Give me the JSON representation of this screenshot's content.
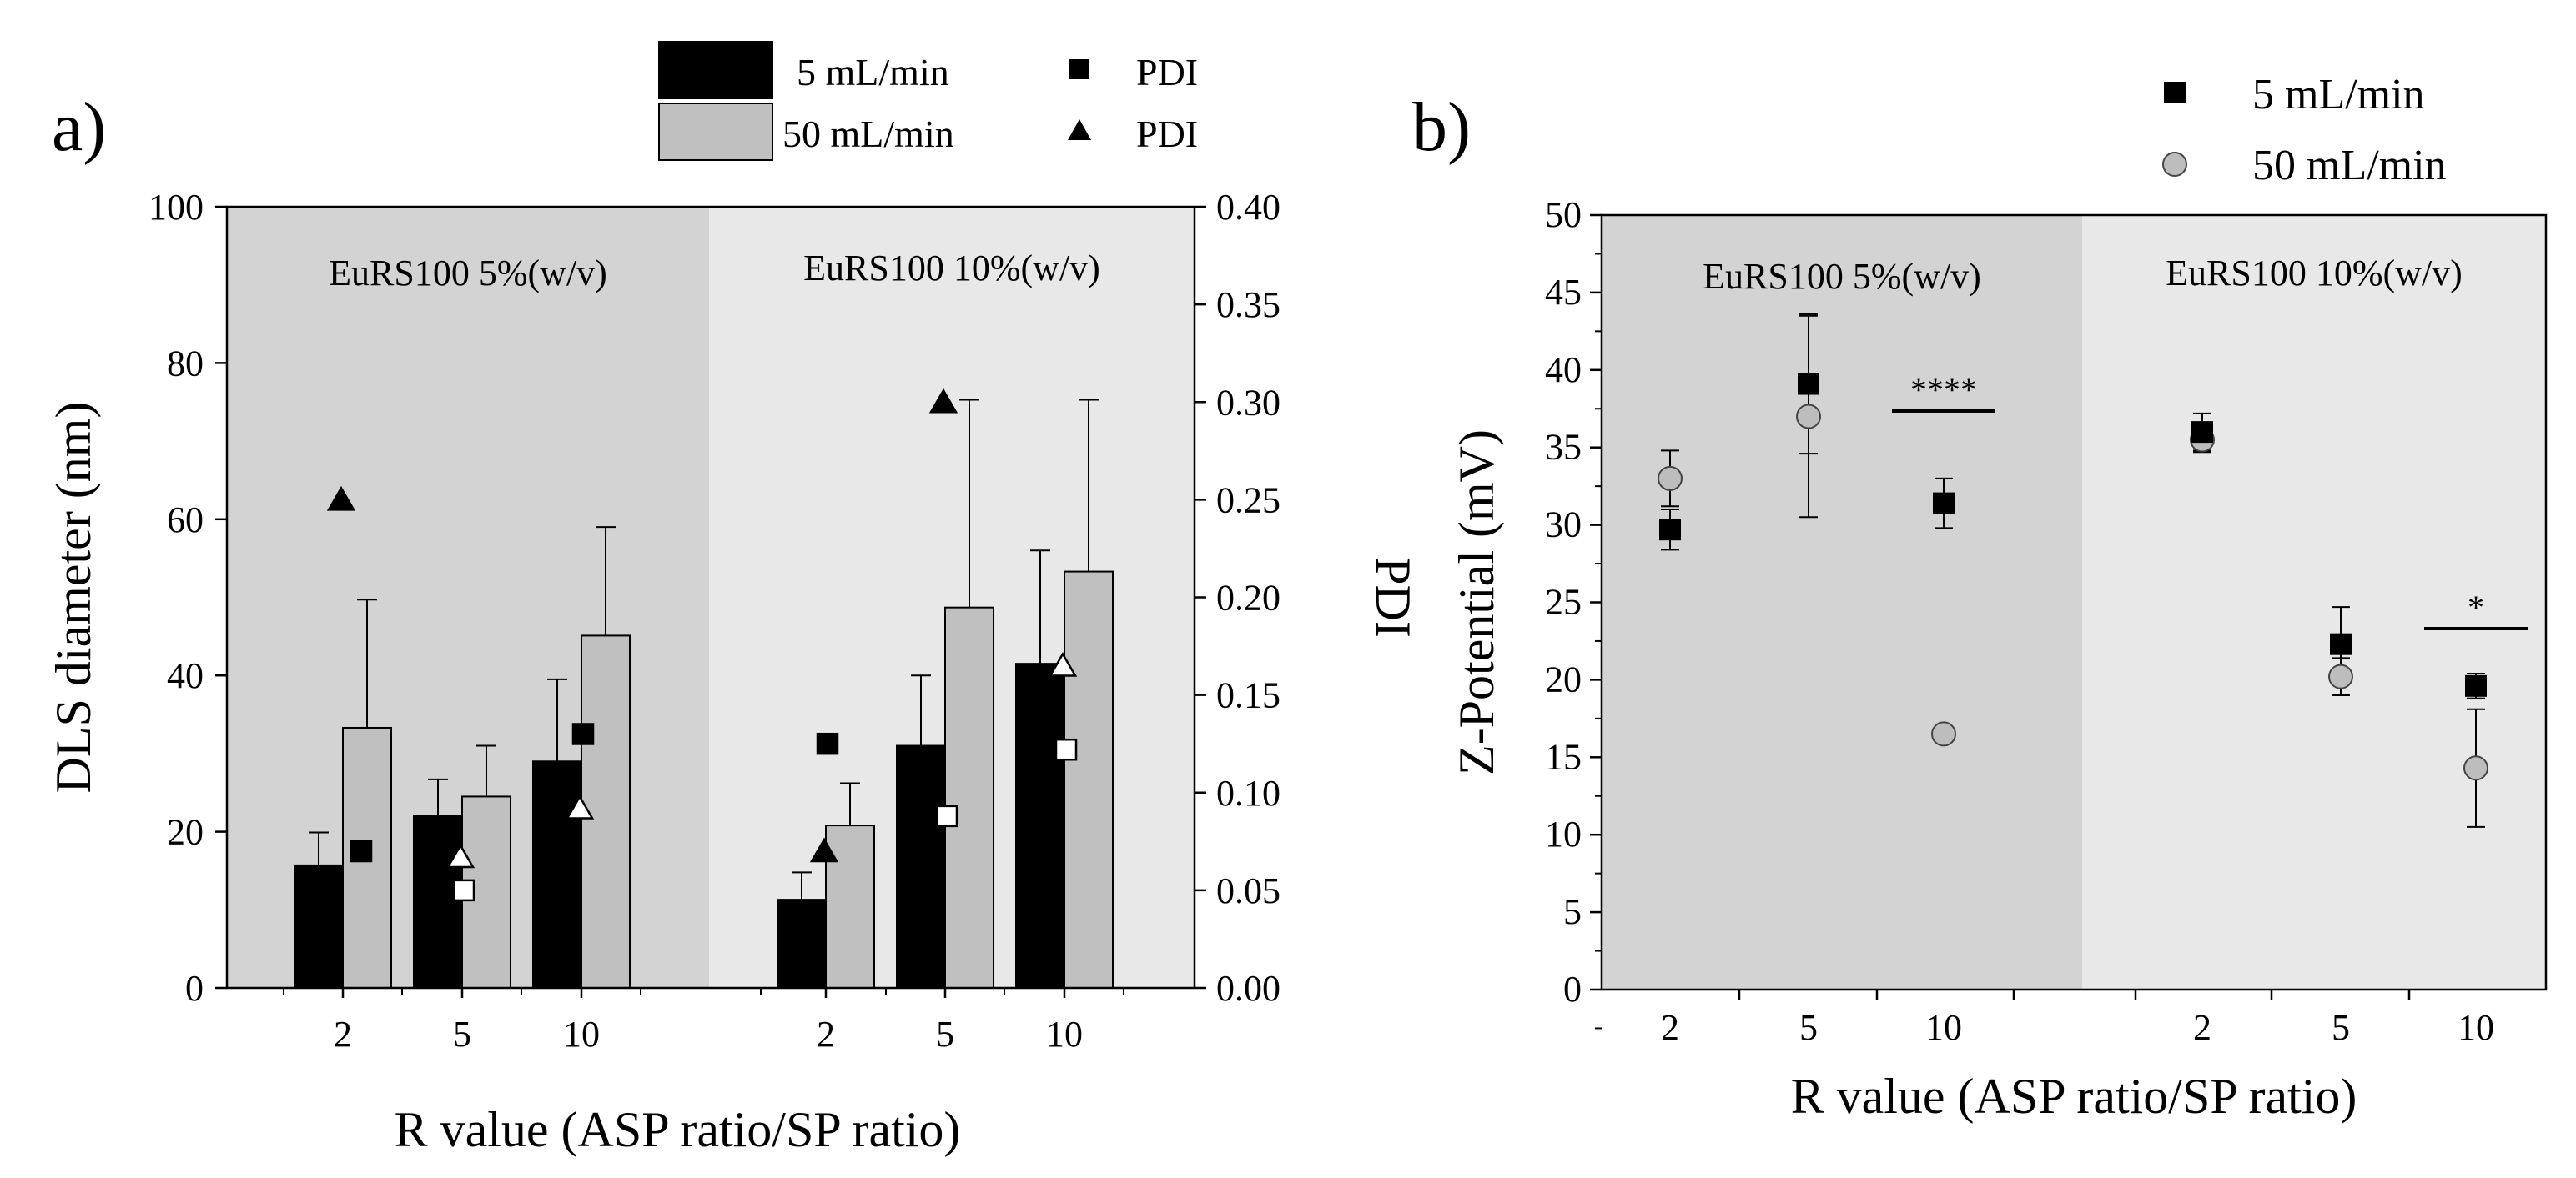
{
  "figure": {
    "panels": [
      {
        "id": "a",
        "letter": "a)",
        "xlabel": "R value (ASP ratio/SP ratio)",
        "ylabel_left": "DLS diameter (nm)",
        "ylabel_right": "PDI",
        "legend": {
          "bar_5": "5 mL/min",
          "bar_50": "50 mL/min",
          "pdi_5": "PDI",
          "pdi_50": "PDI"
        }
      },
      {
        "id": "b",
        "letter": "b)",
        "xlabel": "R value (ASP ratio/SP ratio)",
        "ylabel": "Z-Potential (mV)",
        "legend": {
          "s5": "5 mL/min",
          "s50": "50 mL/min"
        }
      }
    ]
  },
  "colors": {
    "bar_5": "#000000",
    "bar_50": "#c0c0c0",
    "region_dark": "#d3d3d3",
    "region_light": "#e8e8e8",
    "marker_50_b": "#bdbdbd"
  },
  "chart_data": [
    {
      "type": "bar",
      "panel": "a",
      "groups": [
        {
          "label": "EuRS100 5%(w/v)",
          "categories": [
            "2",
            "5",
            "10"
          ]
        },
        {
          "label": "EuRS100 10%(w/v)",
          "categories": [
            "2",
            "5",
            "10"
          ]
        }
      ],
      "ylim": [
        0,
        100
      ],
      "yticks": [
        "0",
        "20",
        "40",
        "60",
        "80",
        "100"
      ],
      "y2lim": [
        0,
        0.4
      ],
      "y2ticks": [
        "0.00",
        "0.05",
        "0.10",
        "0.15",
        "0.20",
        "0.25",
        "0.30",
        "0.35",
        "0.40"
      ],
      "series": [
        {
          "name": "5 mL/min",
          "kind": "bar",
          "values": [
            15.7,
            22.0,
            29.0,
            11.3,
            31.0,
            41.5
          ],
          "errors": [
            4.2,
            4.7,
            10.5,
            3.5,
            9.0,
            14.5
          ]
        },
        {
          "name": "50 mL/min",
          "kind": "bar",
          "values": [
            33.3,
            24.5,
            45.1,
            20.8,
            48.7,
            53.3
          ],
          "errors": [
            16.4,
            6.5,
            13.9,
            5.4,
            26.6,
            22.0
          ]
        },
        {
          "name": "PDI",
          "kind": "square",
          "axis": "right",
          "values": [
            0.07,
            0.05,
            0.13,
            0.125,
            0.088,
            0.122
          ]
        },
        {
          "name": "PDI",
          "kind": "triangle",
          "axis": "right",
          "values": [
            0.25,
            0.067,
            0.092,
            0.07,
            0.3,
            0.165
          ]
        }
      ],
      "grid": false,
      "legend_position": "top"
    },
    {
      "type": "scatter",
      "panel": "b",
      "groups": [
        {
          "label": "EuRS100 5%(w/v)",
          "categories": [
            "2",
            "5",
            "10"
          ]
        },
        {
          "label": "EuRS100 10%(w/v)",
          "categories": [
            "2",
            "5",
            "10"
          ]
        }
      ],
      "ylim": [
        0,
        50
      ],
      "yticks": [
        "0",
        "5",
        "10",
        "15",
        "20",
        "25",
        "30",
        "35",
        "40",
        "45",
        "50"
      ],
      "series": [
        {
          "name": "5 mL/min",
          "marker": "square",
          "values": [
            29.7,
            39.1,
            31.4,
            36.0,
            22.3,
            19.6
          ],
          "errors": [
            1.3,
            4.5,
            1.6,
            1.2,
            2.4,
            0.8
          ]
        },
        {
          "name": "50 mL/min",
          "marker": "circle",
          "values": [
            33.0,
            37.0,
            16.5,
            35.5,
            20.2,
            14.3
          ],
          "errors": [
            1.8,
            6.5,
            0.3,
            0.8,
            1.2,
            3.8
          ]
        }
      ],
      "annotations": [
        {
          "text": "****",
          "category_index": 2
        },
        {
          "text": "*",
          "category_index": 5
        }
      ],
      "grid": false,
      "legend_position": "top-right"
    }
  ]
}
